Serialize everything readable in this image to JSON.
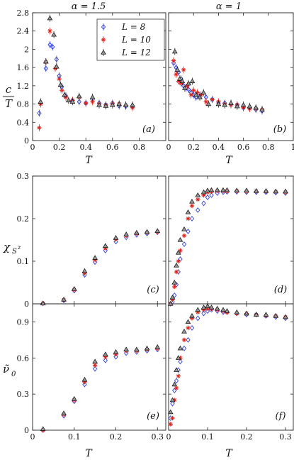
{
  "figure": {
    "column_titles": [
      "α = 1.5",
      "α = 1"
    ],
    "row_ylabels": [
      "c",
      "T",
      "χ",
      "S",
      "z",
      "ν̃",
      "0"
    ],
    "xlabel": "T"
  },
  "legend": {
    "entries": [
      {
        "label": "L = 8",
        "color": "#2e3fd9",
        "marker": "diamond"
      },
      {
        "label": "L = 10",
        "color": "#e0201a",
        "marker": "star"
      },
      {
        "label": "L = 12",
        "color": "#1a1a1a",
        "marker": "triangle"
      }
    ]
  },
  "chart_data": [
    {
      "type": "scatter",
      "panel": "(a)",
      "xlim": [
        0,
        1
      ],
      "ylim": [
        0,
        2.8
      ],
      "xticks": [
        0,
        0.2,
        0.4,
        0.6,
        0.8
      ],
      "xtick_labels": [
        "0",
        "0.2",
        "0.4",
        "0.6",
        "0.8"
      ],
      "yticks": [
        0,
        0.4,
        0.8,
        1.2,
        1.6,
        2,
        2.4,
        2.8
      ],
      "ytick_labels": [
        "0",
        "0.4",
        "0.8",
        "1.2",
        "1.6",
        "2",
        "2.4",
        "2.8"
      ],
      "series": [
        {
          "name": "L = 8",
          "x": [
            0.05,
            0.1,
            0.13,
            0.15,
            0.18,
            0.2,
            0.22,
            0.25,
            0.3,
            0.35,
            0.4,
            0.45,
            0.5,
            0.55,
            0.6,
            0.65,
            0.7,
            0.75
          ],
          "y": [
            0.6,
            1.58,
            2.1,
            2.05,
            1.78,
            1.42,
            1.18,
            0.98,
            0.88,
            0.85,
            0.82,
            0.9,
            0.82,
            0.78,
            0.82,
            0.76,
            0.75,
            0.75
          ]
        },
        {
          "name": "L = 10",
          "x": [
            0.05,
            0.06,
            0.1,
            0.13,
            0.17,
            0.2,
            0.22,
            0.25,
            0.3,
            0.35,
            0.4,
            0.45,
            0.5,
            0.55,
            0.6,
            0.65,
            0.7,
            0.75
          ],
          "y": [
            0.28,
            0.8,
            1.72,
            2.4,
            1.58,
            1.35,
            1.1,
            0.95,
            0.88,
            0.95,
            0.82,
            0.85,
            0.8,
            0.78,
            0.8,
            0.8,
            0.77,
            0.72
          ]
        },
        {
          "name": "L = 12",
          "x": [
            0.06,
            0.1,
            0.13,
            0.16,
            0.18,
            0.21,
            0.24,
            0.27,
            0.3,
            0.35,
            0.45,
            0.5,
            0.55,
            0.6,
            0.65,
            0.7,
            0.75
          ],
          "y": [
            0.85,
            1.73,
            2.68,
            2.32,
            1.62,
            1.22,
            1.0,
            0.88,
            0.85,
            0.97,
            0.95,
            0.78,
            0.76,
            0.78,
            0.8,
            0.78,
            0.78
          ]
        }
      ]
    },
    {
      "type": "scatter",
      "panel": "(b)",
      "xlim": [
        0,
        1
      ],
      "ylim": [
        0,
        2.8
      ],
      "xticks": [
        0,
        0.2,
        0.4,
        0.6,
        0.8,
        1
      ],
      "xtick_labels": [
        "0",
        "0.2",
        "0.4",
        "0.6",
        "0.8",
        "1"
      ],
      "yticks": [
        0,
        0.4,
        0.8,
        1.2,
        1.6,
        2,
        2.4,
        2.8
      ],
      "ytick_labels": [],
      "series": [
        {
          "name": "L = 8",
          "x": [
            0.04,
            0.06,
            0.08,
            0.1,
            0.12,
            0.14,
            0.16,
            0.18,
            0.2,
            0.22,
            0.25,
            0.3,
            0.35,
            0.4,
            0.45,
            0.5,
            0.55,
            0.6,
            0.65,
            0.7,
            0.75
          ],
          "y": [
            1.7,
            1.6,
            1.5,
            1.35,
            1.2,
            1.15,
            1.12,
            1.05,
            1.0,
            0.95,
            0.98,
            0.95,
            0.9,
            0.82,
            0.82,
            0.8,
            0.78,
            0.72,
            0.72,
            0.68,
            0.65
          ]
        },
        {
          "name": "L = 10",
          "x": [
            0.04,
            0.06,
            0.08,
            0.1,
            0.12,
            0.15,
            0.18,
            0.2,
            0.23,
            0.26,
            0.3,
            0.35,
            0.4,
            0.45,
            0.5,
            0.55,
            0.6,
            0.65,
            0.7,
            0.75
          ],
          "y": [
            1.75,
            1.45,
            1.3,
            1.25,
            1.55,
            1.2,
            1.0,
            1.1,
            1.05,
            1.0,
            0.85,
            0.9,
            0.85,
            0.8,
            0.78,
            0.78,
            0.72,
            0.7,
            0.7,
            0.68
          ]
        },
        {
          "name": "L = 12",
          "x": [
            0.05,
            0.07,
            0.09,
            0.11,
            0.13,
            0.16,
            0.19,
            0.22,
            0.25,
            0.28,
            0.32,
            0.4,
            0.45,
            0.5,
            0.55,
            0.6,
            0.65,
            0.7,
            0.75
          ],
          "y": [
            1.95,
            1.55,
            1.35,
            1.3,
            1.15,
            1.25,
            1.3,
            1.0,
            0.95,
            1.05,
            0.8,
            0.8,
            0.78,
            0.82,
            0.75,
            0.78,
            0.75,
            0.72,
            0.68
          ]
        }
      ]
    },
    {
      "type": "scatter",
      "panel": "(c)",
      "xlim": [
        0,
        0.32
      ],
      "ylim": [
        0,
        0.3
      ],
      "xticks": [
        0,
        0.1,
        0.2,
        0.3
      ],
      "xtick_labels": [],
      "yticks": [
        0,
        0.1,
        0.2,
        0.3
      ],
      "ytick_labels": [
        "0",
        "0.1",
        "0.2",
        "0.3"
      ],
      "series": [
        {
          "name": "L = 8",
          "x": [
            0.025,
            0.075,
            0.1,
            0.125,
            0.15,
            0.175,
            0.2,
            0.225,
            0.25,
            0.275,
            0.3
          ],
          "y": [
            0.001,
            0.008,
            0.031,
            0.068,
            0.098,
            0.125,
            0.146,
            0.156,
            0.162,
            0.165,
            0.168
          ]
        },
        {
          "name": "L = 10",
          "x": [
            0.025,
            0.075,
            0.1,
            0.125,
            0.15,
            0.175,
            0.2,
            0.225,
            0.25,
            0.275,
            0.3
          ],
          "y": [
            0.001,
            0.009,
            0.033,
            0.072,
            0.103,
            0.131,
            0.151,
            0.16,
            0.165,
            0.167,
            0.169
          ]
        },
        {
          "name": "L = 12",
          "x": [
            0.025,
            0.075,
            0.1,
            0.125,
            0.15,
            0.175,
            0.2,
            0.225,
            0.25,
            0.275,
            0.3
          ],
          "y": [
            0.001,
            0.01,
            0.035,
            0.077,
            0.108,
            0.136,
            0.155,
            0.163,
            0.167,
            0.169,
            0.171
          ]
        }
      ]
    },
    {
      "type": "scatter",
      "panel": "(d)",
      "xlim": [
        0,
        0.32
      ],
      "ylim": [
        0,
        0.3
      ],
      "xticks": [
        0,
        0.1,
        0.2,
        0.3
      ],
      "xtick_labels": [],
      "yticks": [
        0,
        0.1,
        0.2,
        0.3
      ],
      "ytick_labels": [],
      "series": [
        {
          "name": "L = 8",
          "x": [
            0.005,
            0.01,
            0.015,
            0.02,
            0.025,
            0.03,
            0.04,
            0.05,
            0.06,
            0.075,
            0.09,
            0.1,
            0.11,
            0.125,
            0.14,
            0.15,
            0.175,
            0.2,
            0.225,
            0.25,
            0.275,
            0.3
          ],
          "y": [
            0.0,
            0.005,
            0.02,
            0.045,
            0.075,
            0.105,
            0.14,
            0.17,
            0.2,
            0.22,
            0.236,
            0.25,
            0.255,
            0.26,
            0.262,
            0.263,
            0.263,
            0.262,
            0.262,
            0.262,
            0.261,
            0.26
          ]
        },
        {
          "name": "L = 10",
          "x": [
            0.005,
            0.01,
            0.015,
            0.02,
            0.025,
            0.03,
            0.04,
            0.05,
            0.06,
            0.075,
            0.09,
            0.1,
            0.11,
            0.125,
            0.14,
            0.15,
            0.175,
            0.2,
            0.225,
            0.25,
            0.275,
            0.3
          ],
          "y": [
            0.0,
            0.01,
            0.04,
            0.075,
            0.1,
            0.125,
            0.16,
            0.2,
            0.23,
            0.245,
            0.255,
            0.262,
            0.264,
            0.265,
            0.265,
            0.265,
            0.265,
            0.264,
            0.264,
            0.263,
            0.263,
            0.262
          ]
        },
        {
          "name": "L = 12",
          "x": [
            0.005,
            0.01,
            0.015,
            0.02,
            0.025,
            0.03,
            0.04,
            0.05,
            0.06,
            0.075,
            0.09,
            0.1,
            0.11,
            0.125,
            0.14,
            0.15,
            0.175,
            0.2,
            0.225,
            0.25,
            0.275,
            0.3
          ],
          "y": [
            0.0,
            0.015,
            0.05,
            0.09,
            0.12,
            0.15,
            0.175,
            0.215,
            0.24,
            0.255,
            0.262,
            0.266,
            0.267,
            0.267,
            0.267,
            0.267,
            0.266,
            0.266,
            0.265,
            0.265,
            0.264,
            0.264
          ]
        }
      ]
    },
    {
      "type": "scatter",
      "panel": "(e)",
      "xlim": [
        0,
        0.32
      ],
      "ylim": [
        0,
        1.05
      ],
      "xticks": [
        0,
        0.1,
        0.2,
        0.3
      ],
      "xtick_labels": [
        "0",
        "0.1",
        "0.2",
        "0.3"
      ],
      "yticks": [
        0,
        0.3,
        0.6,
        0.9
      ],
      "ytick_labels": [
        "0",
        "0.3",
        "0.6",
        "0.9"
      ],
      "series": [
        {
          "name": "L = 8",
          "x": [
            0.025,
            0.075,
            0.1,
            0.125,
            0.15,
            0.175,
            0.2,
            0.225,
            0.25,
            0.275,
            0.3
          ],
          "y": [
            0.0,
            0.12,
            0.24,
            0.38,
            0.51,
            0.58,
            0.61,
            0.64,
            0.65,
            0.66,
            0.67
          ]
        },
        {
          "name": "L = 10",
          "x": [
            0.025,
            0.075,
            0.1,
            0.125,
            0.15,
            0.175,
            0.2,
            0.225,
            0.25,
            0.275,
            0.3
          ],
          "y": [
            0.0,
            0.13,
            0.25,
            0.4,
            0.54,
            0.61,
            0.63,
            0.66,
            0.66,
            0.67,
            0.68
          ]
        },
        {
          "name": "L = 12",
          "x": [
            0.025,
            0.075,
            0.1,
            0.125,
            0.15,
            0.175,
            0.2,
            0.225,
            0.25,
            0.275,
            0.3
          ],
          "y": [
            0.01,
            0.14,
            0.26,
            0.42,
            0.57,
            0.63,
            0.65,
            0.67,
            0.67,
            0.68,
            0.69
          ]
        }
      ]
    },
    {
      "type": "scatter",
      "panel": "(f)",
      "xlim": [
        0,
        0.32
      ],
      "ylim": [
        0,
        1.05
      ],
      "xticks": [
        0,
        0.1,
        0.2,
        0.3
      ],
      "xtick_labels": [
        "0",
        "0.1",
        "0.2",
        "0.3"
      ],
      "yticks": [
        0,
        0.3,
        0.6,
        0.9
      ],
      "ytick_labels": [],
      "series": [
        {
          "name": "L = 8",
          "x": [
            0.005,
            0.01,
            0.015,
            0.02,
            0.025,
            0.03,
            0.04,
            0.05,
            0.06,
            0.075,
            0.09,
            0.1,
            0.11,
            0.125,
            0.14,
            0.15,
            0.175,
            0.2,
            0.225,
            0.25,
            0.275,
            0.3
          ],
          "y": [
            0.1,
            0.22,
            0.33,
            0.41,
            0.5,
            0.57,
            0.68,
            0.75,
            0.85,
            0.93,
            0.97,
            0.99,
            1.0,
            0.99,
            0.98,
            0.98,
            0.97,
            0.96,
            0.96,
            0.95,
            0.94,
            0.93
          ]
        },
        {
          "name": "L = 10",
          "x": [
            0.005,
            0.01,
            0.015,
            0.02,
            0.025,
            0.03,
            0.04,
            0.05,
            0.06,
            0.075,
            0.09,
            0.1,
            0.11,
            0.125,
            0.14,
            0.15,
            0.175,
            0.2,
            0.225,
            0.25,
            0.275,
            0.3
          ],
          "y": [
            0.05,
            0.1,
            0.25,
            0.35,
            0.45,
            0.6,
            0.75,
            0.85,
            0.93,
            0.98,
            1.0,
            1.01,
            1.01,
            1.0,
            0.99,
            0.98,
            0.97,
            0.97,
            0.96,
            0.95,
            0.95,
            0.94
          ]
        },
        {
          "name": "L = 12",
          "x": [
            0.005,
            0.01,
            0.015,
            0.02,
            0.025,
            0.03,
            0.04,
            0.05,
            0.06,
            0.075,
            0.09,
            0.1,
            0.11,
            0.125,
            0.14,
            0.15,
            0.175,
            0.2,
            0.225,
            0.25,
            0.275,
            0.3
          ],
          "y": [
            0.15,
            0.25,
            0.38,
            0.5,
            0.6,
            0.68,
            0.82,
            0.9,
            0.95,
            1.0,
            1.02,
            1.03,
            1.02,
            1.01,
            1.0,
            0.99,
            0.98,
            0.97,
            0.96,
            0.96,
            0.95,
            0.94
          ]
        }
      ]
    }
  ]
}
